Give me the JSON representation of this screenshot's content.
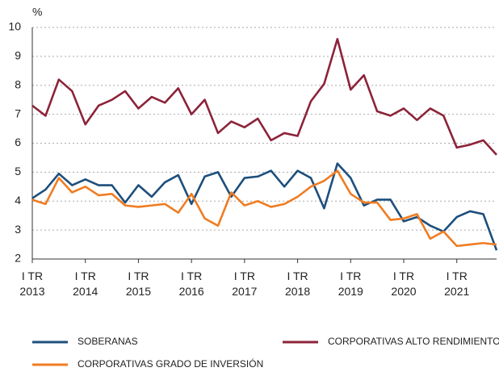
{
  "chart_data": {
    "type": "line",
    "y_unit_label": "%",
    "categories": [
      "I TR\n2013",
      null,
      null,
      null,
      "I TR\n2014",
      null,
      null,
      null,
      "I TR\n2015",
      null,
      null,
      null,
      "I TR\n2016",
      null,
      null,
      null,
      "I TR\n2017",
      null,
      null,
      null,
      "I TR\n2018",
      null,
      null,
      null,
      "I TR\n2019",
      null,
      null,
      null,
      "I TR\n2020",
      null,
      null,
      null,
      "I TR\n2021",
      null,
      null,
      null
    ],
    "series": [
      {
        "name": "SOBERANAS",
        "color": "#1d4f7c",
        "values": [
          4.1,
          4.4,
          4.95,
          4.55,
          4.75,
          4.55,
          4.55,
          3.95,
          4.55,
          4.15,
          4.65,
          4.9,
          3.9,
          4.85,
          5.0,
          4.15,
          4.8,
          4.85,
          5.05,
          4.5,
          5.05,
          4.8,
          3.75,
          5.3,
          4.8,
          3.85,
          4.05,
          4.05,
          3.3,
          3.45,
          3.15,
          2.95,
          3.45,
          3.65,
          3.55,
          2.3
        ]
      },
      {
        "name": "CORPORATIVAS ALTO RENDIMIENTO",
        "color": "#8c2339",
        "values": [
          7.3,
          6.95,
          8.2,
          7.8,
          6.65,
          7.3,
          7.5,
          7.8,
          7.2,
          7.6,
          7.4,
          7.9,
          7.0,
          7.5,
          6.35,
          6.75,
          6.55,
          6.85,
          6.1,
          6.35,
          6.25,
          7.45,
          8.05,
          9.6,
          7.85,
          8.35,
          7.1,
          6.95,
          7.2,
          6.8,
          7.2,
          6.95,
          5.85,
          5.95,
          6.1,
          5.6
        ]
      },
      {
        "name": "CORPORATIVAS GRADO DE INVERSIÓN",
        "color": "#f07c22",
        "values": [
          4.05,
          3.9,
          4.8,
          4.3,
          4.5,
          4.2,
          4.25,
          3.85,
          3.8,
          3.85,
          3.9,
          3.6,
          4.25,
          3.4,
          3.15,
          4.3,
          3.85,
          4.0,
          3.8,
          3.9,
          4.15,
          4.5,
          4.7,
          5.05,
          4.25,
          3.95,
          3.95,
          3.35,
          3.4,
          3.55,
          2.7,
          2.95,
          2.45,
          2.5,
          2.55,
          2.5
        ]
      }
    ],
    "ylim": [
      2,
      10
    ],
    "yticks": [
      2,
      3,
      4,
      5,
      6,
      7,
      8,
      9,
      10
    ],
    "grid": true
  }
}
